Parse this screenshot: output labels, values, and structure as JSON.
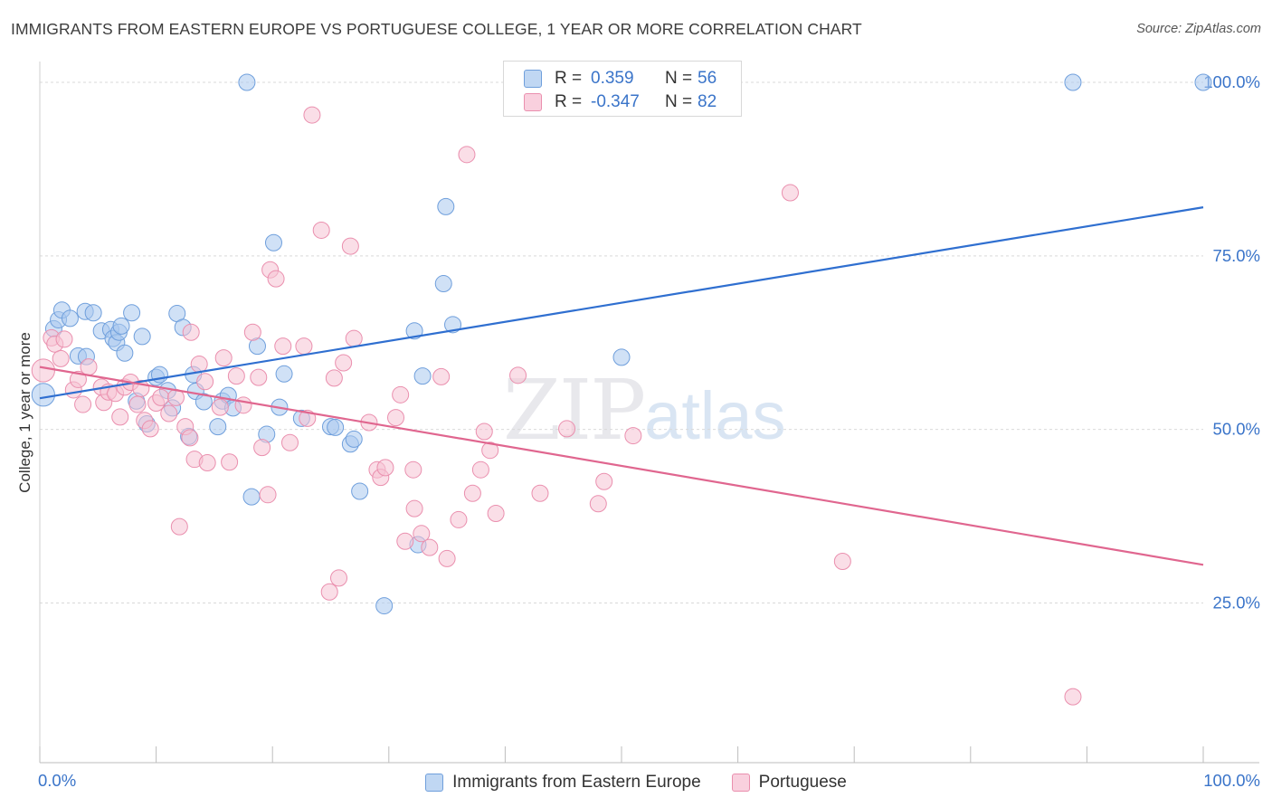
{
  "chart_data": {
    "type": "scatter",
    "title": "IMMIGRANTS FROM EASTERN EUROPE VS PORTUGUESE COLLEGE, 1 YEAR OR MORE CORRELATION CHART",
    "source": "Source: ZipAtlas.com",
    "ylabel": "College, 1 year or more",
    "xlabel": "",
    "xlim": [
      0,
      100
    ],
    "ylim": [
      2,
      103
    ],
    "x_tick_labels": {
      "left": "0.0%",
      "right": "100.0%"
    },
    "y_ticks": [
      {
        "value": 25,
        "label": "25.0%"
      },
      {
        "value": 50,
        "label": "50.0%"
      },
      {
        "value": 75,
        "label": "75.0%"
      },
      {
        "value": 100,
        "label": "100.0%"
      }
    ],
    "watermark": {
      "zip": "ZIP",
      "atlas": "atlas"
    },
    "colors": {
      "blue_fill": "#a9c8ee",
      "blue_stroke": "#6f9fdc",
      "blue_line": "#2f6fd0",
      "pink_fill": "#f6c2d3",
      "pink_stroke": "#ea8fae",
      "pink_line": "#e0668f",
      "axis_text": "#3a74c9",
      "grid": "#d9d9d9"
    },
    "legend": {
      "rows": [
        {
          "r_label": "R =",
          "r_value": "0.359",
          "n_label": "N =",
          "n_value": "56"
        },
        {
          "r_label": "R =",
          "r_value": "-0.347",
          "n_label": "N =",
          "n_value": "82"
        }
      ]
    },
    "series": [
      {
        "name": "Immigrants from Eastern Europe",
        "trend": {
          "x0": 0,
          "y0": 54.5,
          "x1": 100,
          "y1": 82.0
        },
        "points": [
          [
            0.3,
            55.0,
            1.4
          ],
          [
            1.2,
            64.5,
            1
          ],
          [
            1.6,
            65.8,
            1
          ],
          [
            1.9,
            67.2,
            1
          ],
          [
            2.6,
            66.0,
            1
          ],
          [
            3.3,
            60.6,
            1
          ],
          [
            3.9,
            67.0,
            1
          ],
          [
            4.0,
            60.5,
            1
          ],
          [
            4.6,
            66.8,
            1
          ],
          [
            5.3,
            64.2,
            1
          ],
          [
            6.1,
            64.4,
            1
          ],
          [
            6.3,
            63.1,
            1
          ],
          [
            6.6,
            62.5,
            1
          ],
          [
            6.8,
            64.0,
            1
          ],
          [
            7.0,
            64.9,
            1
          ],
          [
            7.3,
            61.0,
            1
          ],
          [
            7.9,
            66.8,
            1
          ],
          [
            8.3,
            54.1,
            1
          ],
          [
            8.8,
            63.4,
            1
          ],
          [
            9.2,
            50.8,
            1
          ],
          [
            10.0,
            57.5,
            1
          ],
          [
            10.3,
            57.9,
            1
          ],
          [
            11.0,
            55.6,
            1
          ],
          [
            11.4,
            53.1,
            1
          ],
          [
            11.8,
            66.7,
            1
          ],
          [
            12.3,
            64.7,
            1
          ],
          [
            12.8,
            49.0,
            1
          ],
          [
            13.2,
            57.9,
            1
          ],
          [
            13.4,
            55.5,
            1
          ],
          [
            14.1,
            54.0,
            1
          ],
          [
            15.3,
            50.4,
            1
          ],
          [
            15.7,
            54.1,
            1
          ],
          [
            16.2,
            54.9,
            1
          ],
          [
            16.6,
            53.1,
            1
          ],
          [
            17.8,
            100.0,
            1
          ],
          [
            18.2,
            40.3,
            1
          ],
          [
            18.7,
            62.0,
            1
          ],
          [
            19.5,
            49.3,
            1
          ],
          [
            20.1,
            76.9,
            1
          ],
          [
            20.6,
            53.2,
            1
          ],
          [
            21.0,
            58.0,
            1
          ],
          [
            22.5,
            51.6,
            1
          ],
          [
            25.0,
            50.4,
            1
          ],
          [
            25.4,
            50.3,
            1
          ],
          [
            26.7,
            47.9,
            1
          ],
          [
            27.0,
            48.6,
            1
          ],
          [
            27.5,
            41.1,
            1
          ],
          [
            29.6,
            24.6,
            1
          ],
          [
            32.2,
            64.2,
            1
          ],
          [
            32.5,
            33.4,
            1
          ],
          [
            32.9,
            57.7,
            1
          ],
          [
            34.7,
            71.0,
            1
          ],
          [
            34.9,
            82.1,
            1
          ],
          [
            35.5,
            65.1,
            1
          ],
          [
            50.0,
            60.4,
            1
          ],
          [
            88.8,
            100.0,
            1
          ],
          [
            100.0,
            100.0,
            1
          ]
        ]
      },
      {
        "name": "Portuguese",
        "trend": {
          "x0": 0,
          "y0": 59.0,
          "x1": 100,
          "y1": 30.5
        },
        "points": [
          [
            0.3,
            58.5,
            1.4
          ],
          [
            1.0,
            63.2,
            1
          ],
          [
            1.3,
            62.3,
            1
          ],
          [
            1.8,
            60.2,
            1
          ],
          [
            2.1,
            63.0,
            1
          ],
          [
            2.9,
            55.7,
            1
          ],
          [
            3.3,
            57.2,
            1
          ],
          [
            3.7,
            53.6,
            1
          ],
          [
            4.2,
            59.0,
            1
          ],
          [
            5.3,
            56.1,
            1
          ],
          [
            5.5,
            53.9,
            1
          ],
          [
            5.9,
            55.4,
            1
          ],
          [
            6.5,
            55.2,
            1
          ],
          [
            6.9,
            51.8,
            1
          ],
          [
            7.3,
            56.1,
            1
          ],
          [
            7.8,
            56.8,
            1
          ],
          [
            8.4,
            53.6,
            1
          ],
          [
            8.7,
            55.9,
            1
          ],
          [
            9.0,
            51.3,
            1
          ],
          [
            9.5,
            50.1,
            1
          ],
          [
            10.0,
            53.8,
            1
          ],
          [
            10.4,
            54.6,
            1
          ],
          [
            11.1,
            52.3,
            1
          ],
          [
            11.7,
            54.6,
            1
          ],
          [
            12.0,
            36.0,
            1
          ],
          [
            12.5,
            50.4,
            1
          ],
          [
            12.9,
            48.8,
            1
          ],
          [
            13.0,
            64.0,
            1
          ],
          [
            13.3,
            45.7,
            1
          ],
          [
            13.7,
            59.4,
            1
          ],
          [
            14.2,
            56.9,
            1
          ],
          [
            14.4,
            45.2,
            1
          ],
          [
            15.5,
            53.2,
            1
          ],
          [
            15.8,
            60.3,
            1
          ],
          [
            16.3,
            45.3,
            1
          ],
          [
            16.9,
            57.7,
            1
          ],
          [
            17.5,
            53.5,
            1
          ],
          [
            18.3,
            64.0,
            1
          ],
          [
            18.8,
            57.5,
            1
          ],
          [
            19.1,
            47.4,
            1
          ],
          [
            19.6,
            40.6,
            1
          ],
          [
            19.8,
            73.0,
            1
          ],
          [
            20.3,
            71.7,
            1
          ],
          [
            20.9,
            62.0,
            1
          ],
          [
            21.5,
            48.1,
            1
          ],
          [
            22.7,
            62.0,
            1
          ],
          [
            23.0,
            51.6,
            1
          ],
          [
            23.4,
            95.3,
            1
          ],
          [
            24.2,
            78.7,
            1
          ],
          [
            24.9,
            26.6,
            1
          ],
          [
            25.3,
            57.4,
            1
          ],
          [
            25.7,
            28.6,
            1
          ],
          [
            26.1,
            59.6,
            1
          ],
          [
            26.7,
            76.4,
            1
          ],
          [
            27.0,
            63.1,
            1
          ],
          [
            28.3,
            51.0,
            1
          ],
          [
            29.0,
            44.2,
            1
          ],
          [
            29.3,
            43.1,
            1
          ],
          [
            29.7,
            44.5,
            1
          ],
          [
            30.6,
            51.7,
            1
          ],
          [
            31.0,
            55.0,
            1
          ],
          [
            31.4,
            33.9,
            1
          ],
          [
            32.1,
            44.2,
            1
          ],
          [
            32.2,
            38.6,
            1
          ],
          [
            32.8,
            35.0,
            1
          ],
          [
            33.5,
            33.0,
            1
          ],
          [
            34.5,
            57.6,
            1
          ],
          [
            35.0,
            31.4,
            1
          ],
          [
            36.0,
            37.0,
            1
          ],
          [
            36.7,
            89.6,
            1
          ],
          [
            37.2,
            40.8,
            1
          ],
          [
            37.9,
            44.2,
            1
          ],
          [
            38.2,
            49.7,
            1
          ],
          [
            38.7,
            47.0,
            1
          ],
          [
            39.2,
            37.9,
            1
          ],
          [
            41.1,
            57.8,
            1
          ],
          [
            43.0,
            40.8,
            1
          ],
          [
            45.3,
            50.1,
            1
          ],
          [
            48.0,
            39.3,
            1
          ],
          [
            48.5,
            42.5,
            1
          ],
          [
            51.0,
            49.1,
            1
          ],
          [
            64.5,
            84.1,
            1
          ],
          [
            69.0,
            31.0,
            1
          ],
          [
            88.8,
            11.5,
            1
          ]
        ]
      }
    ]
  }
}
